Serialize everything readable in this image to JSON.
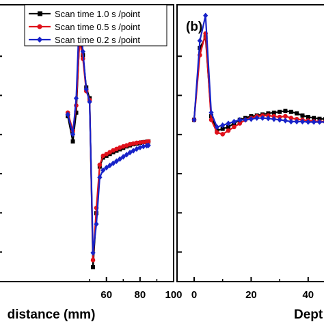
{
  "chart_data": [
    {
      "type": "line",
      "title": "",
      "xlabel": "distance (mm)",
      "ylabel": "",
      "xlim": [
        -5,
        100
      ],
      "ylim": [
        -4.5,
        3.2
      ],
      "xticks": [
        60,
        80,
        100
      ],
      "grid": false,
      "legend_placement": "top-right",
      "series": [
        {
          "name": "Scan time 1.0 s /point",
          "color": "#000000",
          "marker": "square",
          "x": [
            0,
            2,
            4,
            6,
            8,
            10,
            12,
            14,
            16,
            18,
            20,
            22,
            24,
            26,
            28,
            30,
            32,
            34,
            36,
            38,
            40,
            42,
            44,
            46,
            48,
            50,
            52,
            54,
            56,
            58,
            60,
            62,
            64,
            66,
            68,
            70,
            72,
            74,
            76,
            78,
            80,
            82,
            84
          ],
          "y": [
            0,
            0,
            0,
            0,
            0,
            0,
            0,
            0,
            0,
            0,
            0,
            0,
            0,
            0,
            0,
            0,
            0,
            0,
            0,
            0,
            0,
            0,
            0,
            0,
            0,
            0,
            -4.05,
            -2.55,
            -1.3,
            -1.05,
            -1.0,
            -0.95,
            -0.9,
            -0.86,
            -0.82,
            -0.78,
            -0.75,
            -0.72,
            -0.7,
            -0.68,
            -0.66,
            -0.64,
            -0.63
          ]
        }
      ]
    },
    {
      "type": "line",
      "title": "",
      "xlabel": "Dept",
      "ylabel": "",
      "xlim": [
        -6,
        47
      ],
      "ylim": [
        -4.5,
        3.2
      ],
      "xticks": [
        0,
        20,
        40
      ],
      "grid": false,
      "series": [
        {
          "name": "Scan time 1.0 s /point",
          "color": "#000000",
          "marker": "square",
          "x": [
            0,
            2,
            4,
            6,
            8,
            10,
            12,
            14,
            16,
            18,
            20,
            22,
            24,
            26,
            28,
            30,
            32,
            34,
            36,
            38,
            40,
            42,
            44,
            46
          ],
          "y": [
            0,
            0,
            0,
            0,
            0,
            0,
            0,
            0,
            0,
            0,
            0,
            0,
            0,
            0,
            0,
            0,
            0,
            0,
            0,
            0,
            0,
            0,
            0,
            0
          ]
        }
      ]
    }
  ],
  "figure": {
    "panel_b_label": "(b)",
    "tick_count_y": 6
  }
}
